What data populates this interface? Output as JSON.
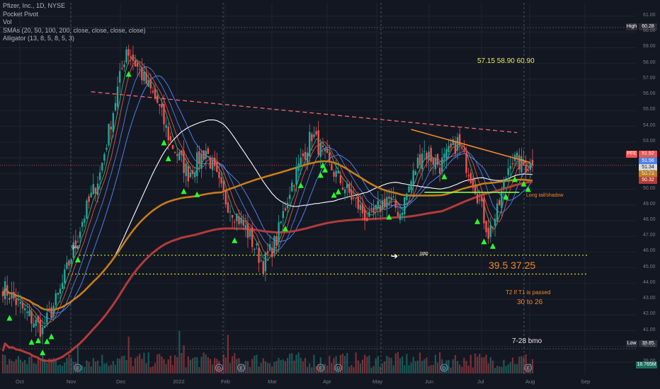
{
  "legend": {
    "title": "Pfizer, Inc., 1D, NYSE",
    "lines": [
      "Pocket Pivot",
      "Vol",
      "SMAs (20, 50, 100, 200, close, close, close, close)",
      "Alligator (13, 8, 5, 8, 5, 3)"
    ]
  },
  "annotations": {
    "targets_top": "57.15  58.90  60.90",
    "targets_mid": "39.5  37.25",
    "t2_line1": "T2 If T1 is passed",
    "t2_line2": "30 to 26",
    "date_note": "7-28 bmo",
    "long_tail": "Long tail/shadow",
    "gap_left": "gap",
    "gap_mid": "gap"
  },
  "price_badges": {
    "high_label": "High",
    "high_value": "60.28",
    "low_label": "Low",
    "low_value": "39.85",
    "last_label": "PFE",
    "last_value": "51.52",
    "ma_values": [
      "51.56",
      "51.34",
      "50.73",
      "50.32"
    ],
    "vol_value": "18.765M"
  },
  "colors": {
    "up": "#26a69a",
    "down": "#ef5350",
    "bg": "#131722",
    "sma20": "#4f7fe8",
    "sma50": "#ffffff",
    "sma100": "#c77d18",
    "sma200": "#b23b3b",
    "gap_line": "#c6e01a",
    "trend_red": "#f06a6a",
    "trend_orange": "#f0882a",
    "pivot": "#2aff2a"
  },
  "chart_data": {
    "type": "candlestick",
    "symbol": "PFE",
    "ylim": [
      38.5,
      61.5
    ],
    "y_ticks": [
      39.0,
      40.0,
      41.0,
      42.0,
      43.0,
      44.0,
      45.0,
      46.0,
      47.0,
      48.0,
      49.0,
      50.0,
      51.0,
      52.0,
      53.0,
      54.0,
      55.0,
      56.0,
      57.0,
      58.0,
      59.0,
      60.0,
      61.0
    ],
    "x_ticks": [
      "Oct",
      "Nov",
      "Dec",
      "2022",
      "Feb",
      "Mar",
      "Apr",
      "May",
      "Jun",
      "Jul",
      "Aug",
      "Sep"
    ],
    "price_path": [
      [
        0,
        43.8
      ],
      [
        10,
        42.2
      ],
      [
        18,
        41.0
      ],
      [
        26,
        43.5
      ],
      [
        36,
        48.0
      ],
      [
        44,
        51.0
      ],
      [
        50,
        55.0
      ],
      [
        56,
        59.0
      ],
      [
        62,
        57.5
      ],
      [
        70,
        55.5
      ],
      [
        76,
        53.0
      ],
      [
        84,
        51.0
      ],
      [
        92,
        52.5
      ],
      [
        100,
        49.5
      ],
      [
        110,
        47.5
      ],
      [
        118,
        45.2
      ],
      [
        124,
        46.8
      ],
      [
        130,
        50.0
      ],
      [
        140,
        53.5
      ],
      [
        148,
        51.5
      ],
      [
        158,
        49.5
      ],
      [
        166,
        48.0
      ],
      [
        174,
        49.5
      ],
      [
        180,
        48.5
      ],
      [
        190,
        52.5
      ],
      [
        198,
        51.5
      ],
      [
        206,
        53.0
      ],
      [
        214,
        50.2
      ],
      [
        220,
        47.2
      ],
      [
        224,
        48.5
      ],
      [
        230,
        52.0
      ],
      [
        236,
        51.5
      ],
      [
        240,
        51.52
      ]
    ],
    "candle_count": 241,
    "volume_scale_max": 1.0,
    "trendlines": [
      {
        "name": "red-dashed-resistance",
        "points": [
          [
            40,
            56.2
          ],
          [
            233,
            53.6
          ]
        ]
      },
      {
        "name": "orange-resistance",
        "points": [
          [
            185,
            53.8
          ],
          [
            239,
            51.7
          ]
        ]
      },
      {
        "name": "green-support",
        "points": [
          [
            191,
            49.8
          ],
          [
            234,
            49.8
          ]
        ]
      }
    ],
    "gap_levels": [
      45.8,
      44.6
    ],
    "horizontal_levels": {
      "high": 60.28,
      "low": 39.85,
      "last": 51.52
    }
  }
}
